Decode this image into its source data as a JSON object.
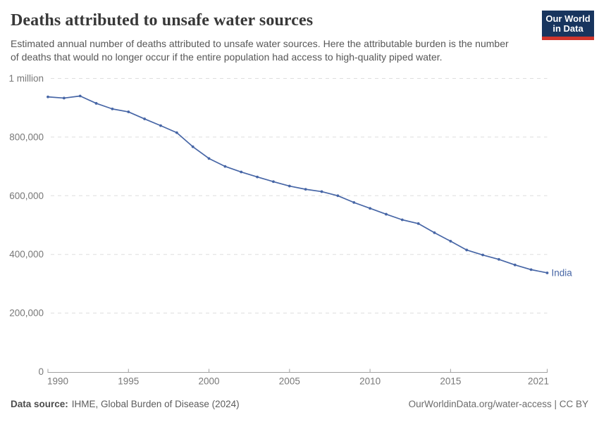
{
  "header": {
    "logo": {
      "line1": "Our World",
      "line2": "in Data",
      "bg_color": "#18355e",
      "accent_color": "#d0352c"
    }
  },
  "footer": {
    "source_label": "Data source:",
    "source_value": "IHME, Global Burden of Disease (2024)",
    "link_text": "OurWorldinData.org/water-access",
    "separator": " | ",
    "license": "CC BY"
  },
  "colors": {
    "series_blue": "#4766a6",
    "grid": "#dedede",
    "axis": "#a1a1a1",
    "axis_text": "#787878"
  },
  "chart_data": {
    "type": "line",
    "title": "Deaths attributed to unsafe water sources",
    "subtitle": "Estimated annual number of deaths attributed to unsafe water sources. Here the attributable burden is the number of deaths that would no longer occur if the entire population had access to high-quality piped water.",
    "xlabel": "",
    "ylabel": "",
    "xlim": [
      1990,
      2021
    ],
    "ylim": [
      0,
      1000000
    ],
    "grid": "horizontal-dashed",
    "legend_position": "end-of-line-label",
    "x_ticks": [
      {
        "value": 1990,
        "label": "1990"
      },
      {
        "value": 1995,
        "label": "1995"
      },
      {
        "value": 2000,
        "label": "2000"
      },
      {
        "value": 2005,
        "label": "2005"
      },
      {
        "value": 2010,
        "label": "2010"
      },
      {
        "value": 2015,
        "label": "2015"
      },
      {
        "value": 2021,
        "label": "2021"
      }
    ],
    "y_ticks": [
      {
        "value": 0,
        "label": "0"
      },
      {
        "value": 200000,
        "label": "200,000"
      },
      {
        "value": 400000,
        "label": "400,000"
      },
      {
        "value": 600000,
        "label": "600,000"
      },
      {
        "value": 800000,
        "label": "800,000"
      },
      {
        "value": 1000000,
        "label": "1 million"
      }
    ],
    "series": [
      {
        "name": "India",
        "color": "#4766a6",
        "x": [
          1990,
          1991,
          1992,
          1993,
          1994,
          1995,
          1996,
          1997,
          1998,
          1999,
          2000,
          2001,
          2002,
          2003,
          2004,
          2005,
          2006,
          2007,
          2008,
          2009,
          2010,
          2011,
          2012,
          2013,
          2014,
          2015,
          2016,
          2017,
          2018,
          2019,
          2020,
          2021
        ],
        "values": [
          937000,
          933000,
          940000,
          915000,
          896000,
          886000,
          862000,
          839000,
          815000,
          767000,
          727000,
          700000,
          681000,
          664000,
          648000,
          633000,
          622000,
          614000,
          600000,
          577000,
          557000,
          537000,
          518000,
          505000,
          474000,
          445000,
          415000,
          398000,
          383000,
          364000,
          348000,
          337000
        ]
      }
    ]
  }
}
